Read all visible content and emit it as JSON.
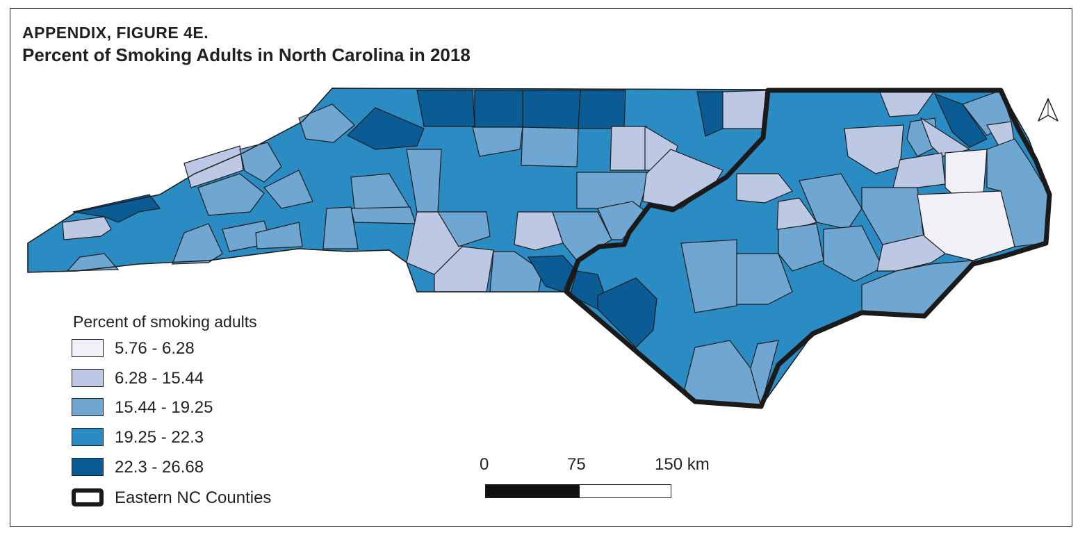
{
  "figure": {
    "label": "APPENDIX, FIGURE 4E.",
    "title": "Percent of Smoking Adults in North Carolina in 2018"
  },
  "legend": {
    "title": "Percent of smoking adults",
    "classes": [
      {
        "label": "5.76 - 6.28",
        "color": "#f2f0f7"
      },
      {
        "label": "6.28 - 15.44",
        "color": "#bdc9e4"
      },
      {
        "label": "15.44 - 19.25",
        "color": "#6fa6d2"
      },
      {
        "label": "19.25 - 22.3",
        "color": "#2b8cc4"
      },
      {
        "label": "22.3 - 26.68",
        "color": "#0b5b95"
      }
    ],
    "boundary_label": "Eastern NC Counties"
  },
  "scale_bar": {
    "labels": [
      "0",
      "75",
      "150 km"
    ]
  },
  "north_arrow": {
    "icon": "north-arrow-icon"
  }
}
